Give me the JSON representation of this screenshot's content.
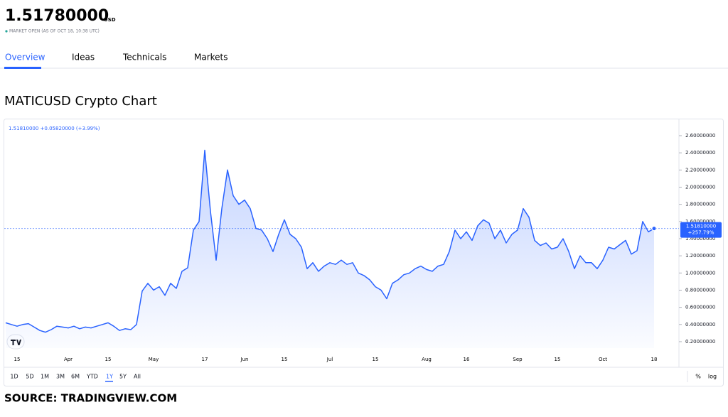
{
  "header": {
    "price": "1.51780000",
    "currency": "USD",
    "status": "MARKET OPEN (AS OF OCT 18, 10:38 UTC)"
  },
  "tabs": [
    "Overview",
    "Ideas",
    "Technicals",
    "Markets"
  ],
  "heading": "MATICUSD Crypto Chart",
  "chart_data": {
    "type": "area",
    "legend": "1.51810000 +0.05820000 (+3.99%)",
    "last_price_label": "1.51810000",
    "change_label": "+257.79%",
    "color": "#2962ff",
    "categories": [
      null,
      null,
      "15",
      null,
      null,
      null,
      null,
      null,
      null,
      null,
      null,
      "Apr",
      null,
      null,
      null,
      null,
      null,
      null,
      "15",
      null,
      null,
      null,
      null,
      null,
      null,
      null,
      "May",
      null,
      null,
      null,
      null,
      null,
      null,
      null,
      null,
      "17",
      null,
      null,
      null,
      null,
      null,
      null,
      "Jun",
      null,
      null,
      null,
      null,
      null,
      null,
      "15",
      null,
      null,
      null,
      null,
      null,
      null,
      null,
      "Jul",
      null,
      null,
      null,
      null,
      null,
      null,
      null,
      "15",
      null,
      null,
      null,
      null,
      null,
      null,
      null,
      null,
      "Aug",
      null,
      null,
      null,
      null,
      null,
      null,
      "16",
      null,
      null,
      null,
      null,
      null,
      null,
      null,
      null,
      "Sep",
      null,
      null,
      null,
      null,
      null,
      null,
      "15",
      null,
      null,
      null,
      null,
      null,
      null,
      null,
      "Oct",
      null,
      null,
      null,
      null,
      null,
      null,
      null,
      null,
      "18"
    ],
    "values": [
      0.42,
      0.4,
      0.38,
      0.4,
      0.41,
      0.37,
      0.33,
      0.31,
      0.34,
      0.38,
      0.37,
      0.36,
      0.38,
      0.35,
      0.37,
      0.36,
      0.38,
      0.4,
      0.42,
      0.38,
      0.33,
      0.35,
      0.34,
      0.4,
      0.79,
      0.88,
      0.8,
      0.84,
      0.74,
      0.88,
      0.82,
      1.02,
      1.06,
      1.5,
      1.6,
      2.43,
      1.72,
      1.15,
      1.75,
      2.2,
      1.9,
      1.8,
      1.85,
      1.75,
      1.52,
      1.5,
      1.4,
      1.25,
      1.45,
      1.62,
      1.45,
      1.4,
      1.3,
      1.05,
      1.12,
      1.02,
      1.08,
      1.12,
      1.1,
      1.15,
      1.1,
      1.12,
      1.0,
      0.97,
      0.92,
      0.84,
      0.8,
      0.7,
      0.88,
      0.92,
      0.98,
      1.0,
      1.05,
      1.08,
      1.04,
      1.02,
      1.08,
      1.1,
      1.25,
      1.5,
      1.4,
      1.48,
      1.38,
      1.55,
      1.62,
      1.58,
      1.4,
      1.5,
      1.35,
      1.45,
      1.5,
      1.75,
      1.65,
      1.38,
      1.32,
      1.35,
      1.28,
      1.3,
      1.4,
      1.25,
      1.05,
      1.2,
      1.12,
      1.12,
      1.05,
      1.15,
      1.3,
      1.28,
      1.33,
      1.38,
      1.22,
      1.26,
      1.6,
      1.48,
      1.5181
    ],
    "ylim": [
      0.125,
      2.757
    ],
    "yticks": [
      {
        "value": 0.2,
        "label": "0.20000000"
      },
      {
        "value": 0.4,
        "label": "0.40000000"
      },
      {
        "value": 0.6,
        "label": "0.60000000"
      },
      {
        "value": 0.8,
        "label": "0.80000000"
      },
      {
        "value": 1.0,
        "label": "1.00000000"
      },
      {
        "value": 1.2,
        "label": "1.20000000"
      },
      {
        "value": 1.4,
        "label": "1.40000000"
      },
      {
        "value": 1.6,
        "label": "1.60000000"
      },
      {
        "value": 1.8,
        "label": "1.80000000"
      },
      {
        "value": 2.0,
        "label": "2.00000000"
      },
      {
        "value": 2.2,
        "label": "2.20000000"
      },
      {
        "value": 2.4,
        "label": "2.40000000"
      },
      {
        "value": 2.6,
        "label": "2.60000000"
      }
    ]
  },
  "range_buttons": [
    "1D",
    "5D",
    "1M",
    "3M",
    "6M",
    "YTD",
    "1Y",
    "5Y",
    "All"
  ],
  "scale_buttons": [
    "%",
    "log"
  ],
  "source": "SOURCE: TRADINGVIEW.COM"
}
